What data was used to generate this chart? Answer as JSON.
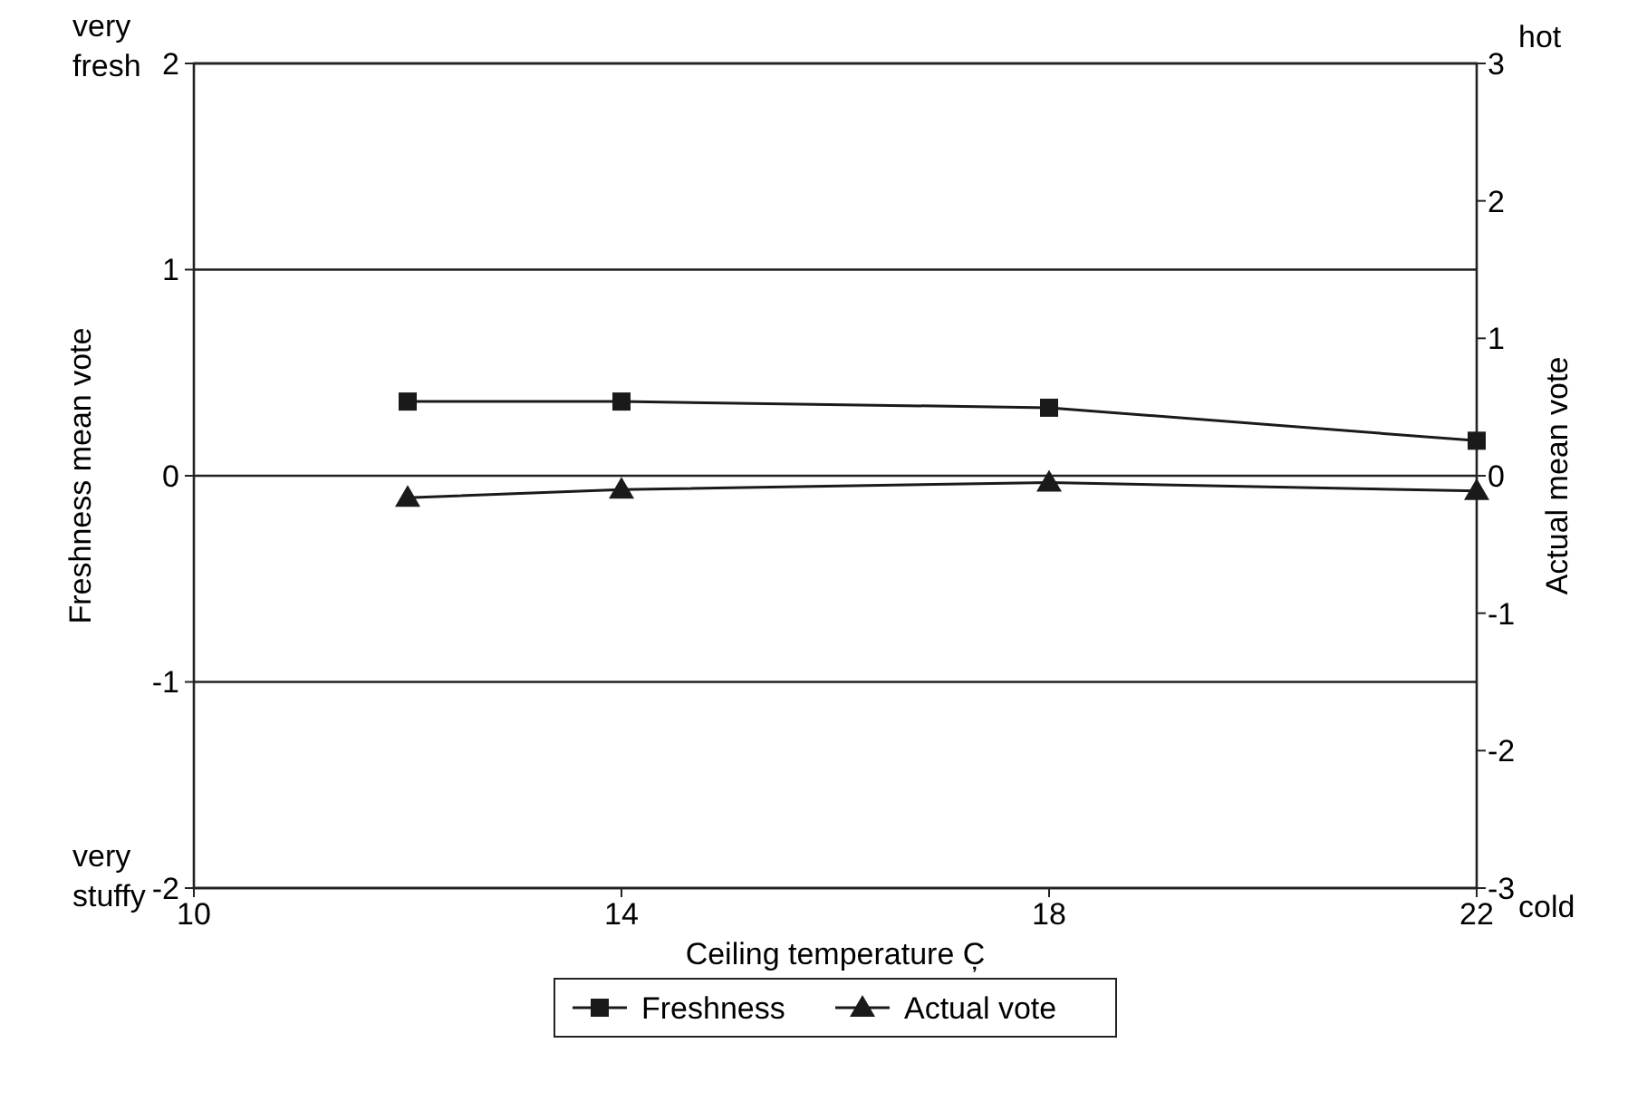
{
  "chart_data": {
    "type": "line",
    "xlabel": "Ceiling temperature C̦",
    "ylabel": "Freshness mean vote",
    "y2label": "Actual mean vote",
    "xlim": [
      10,
      22
    ],
    "xticks": [
      10,
      14,
      18,
      22
    ],
    "ylim": [
      -2,
      2
    ],
    "yticks": [
      -2,
      -1,
      0,
      1,
      2
    ],
    "y2lim": [
      -3,
      3
    ],
    "y2ticks": [
      -3,
      -2,
      -1,
      0,
      1,
      2,
      3
    ],
    "grid": "y",
    "legend": "bottom",
    "annotations": [
      "very fresh",
      "very stuffy",
      "hot",
      "cold"
    ],
    "series": [
      {
        "name": "Freshness",
        "color": "#1a1a1a",
        "x": [
          12,
          14,
          18,
          22
        ],
        "values": [
          0.36,
          0.36,
          0.33,
          0.17
        ],
        "marker": "square"
      },
      {
        "name": "Actual vote",
        "color": "#1a1a1a",
        "x": [
          12,
          14,
          18,
          22
        ],
        "values": [
          -0.16,
          -0.1,
          -0.05,
          -0.11
        ],
        "axis": "y2",
        "marker": "triangle"
      }
    ]
  }
}
